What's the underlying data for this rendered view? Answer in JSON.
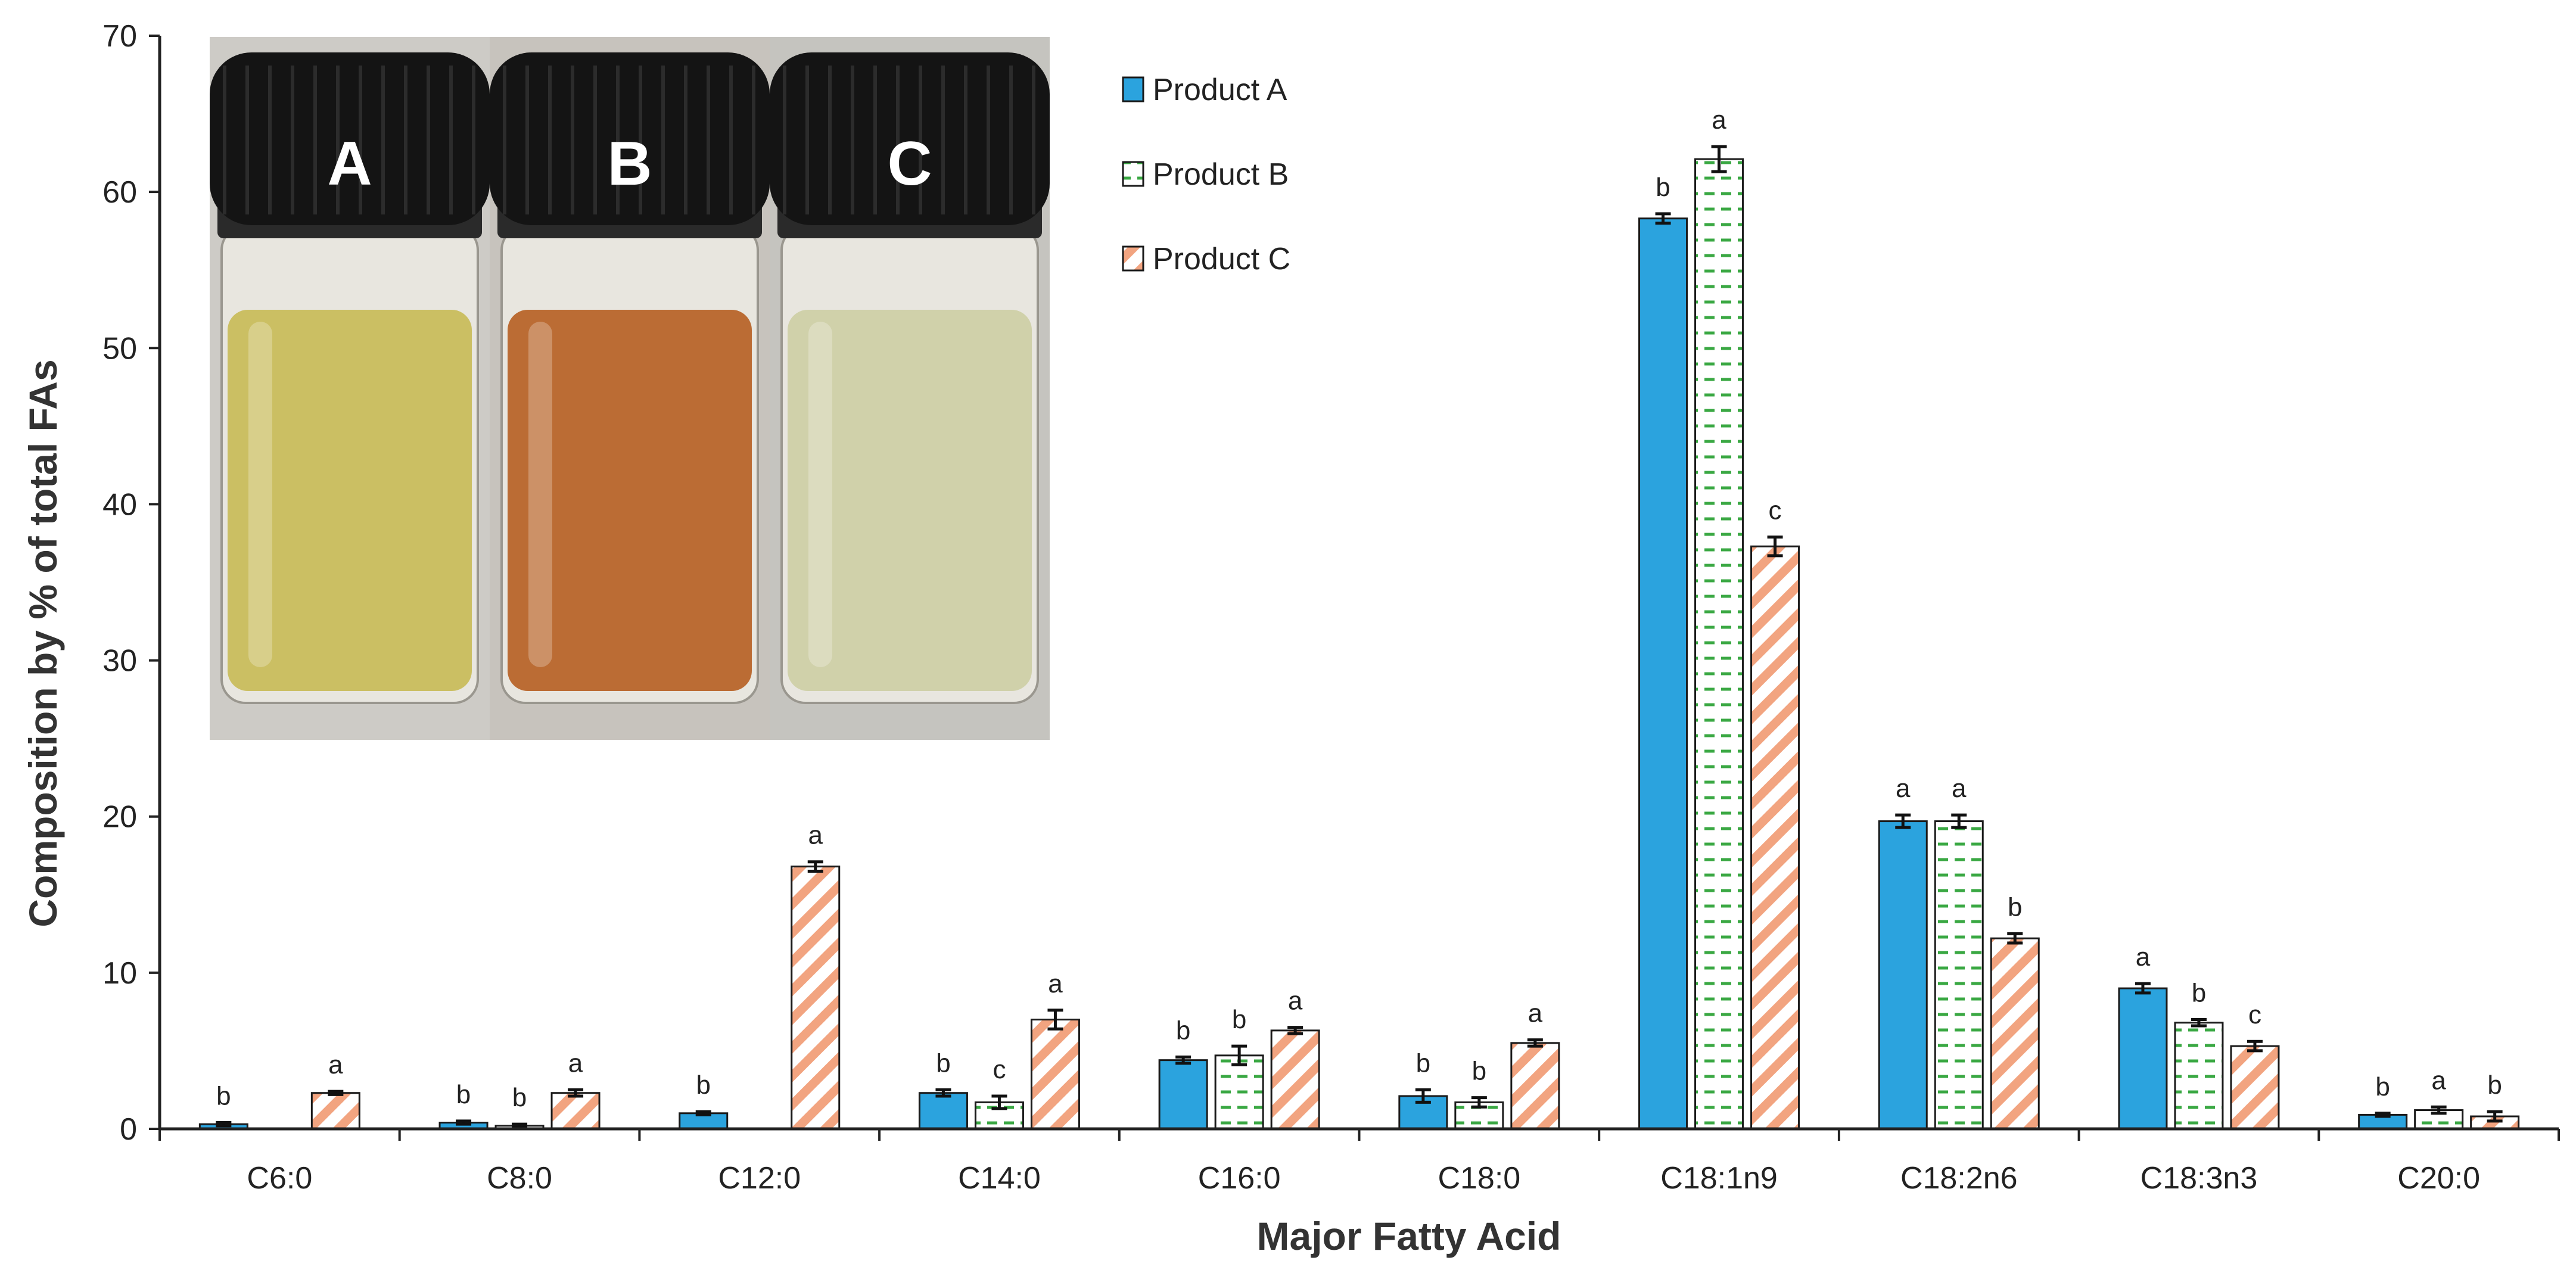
{
  "chart_data": {
    "type": "bar",
    "xlabel": "Major Fatty Acid",
    "ylabel": "Composition by % of total FAs",
    "ylim": [
      0,
      70
    ],
    "yticks": [
      0,
      10,
      20,
      30,
      40,
      50,
      60,
      70
    ],
    "categories": [
      "C6:0",
      "C8:0",
      "C12:0",
      "C14:0",
      "C16:0",
      "C18:0",
      "C18:1n9",
      "C18:2n6",
      "C18:3n3",
      "C20:0"
    ],
    "series": [
      {
        "name": "Product A",
        "color": "#2ba3de",
        "pattern": "solid",
        "values": [
          0.3,
          0.4,
          1.0,
          2.3,
          4.4,
          2.1,
          58.3,
          19.7,
          9.0,
          0.9
        ],
        "errors": [
          0.1,
          0.1,
          0.1,
          0.2,
          0.2,
          0.4,
          0.3,
          0.4,
          0.3,
          0.1
        ],
        "letters": [
          "b",
          "b",
          "b",
          "b",
          "b",
          "b",
          "b",
          "a",
          "a",
          "b"
        ]
      },
      {
        "name": "Product B",
        "color": "#3aa843",
        "pattern": "dashes",
        "values": [
          null,
          0.2,
          null,
          1.7,
          4.7,
          1.7,
          62.1,
          19.7,
          6.8,
          1.2
        ],
        "errors": [
          null,
          0.1,
          null,
          0.4,
          0.6,
          0.3,
          0.8,
          0.4,
          0.2,
          0.2
        ],
        "letters": [
          "",
          "b",
          "",
          "c",
          "b",
          "b",
          "a",
          "a",
          "b",
          "a"
        ]
      },
      {
        "name": "Product C",
        "color": "#f2a480",
        "pattern": "diagonal",
        "values": [
          2.3,
          2.3,
          16.8,
          7.0,
          6.3,
          5.5,
          37.3,
          12.2,
          5.3,
          0.8
        ],
        "errors": [
          0.1,
          0.2,
          0.3,
          0.6,
          0.2,
          0.2,
          0.6,
          0.3,
          0.3,
          0.3
        ],
        "letters": [
          "a",
          "a",
          "a",
          "a",
          "a",
          "a",
          "c",
          "b",
          "c",
          "b"
        ]
      }
    ],
    "legend_position": "top-center",
    "grid": false
  },
  "inset_photo": {
    "vial_labels": [
      "A",
      "B",
      "C"
    ],
    "liquid_colors": [
      "#c9bd5c",
      "#b8652a",
      "#cfd0a6"
    ]
  }
}
